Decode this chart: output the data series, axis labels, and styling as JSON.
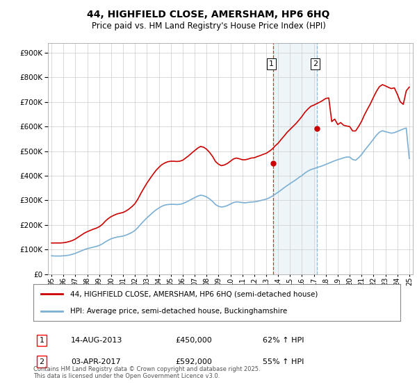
{
  "title": "44, HIGHFIELD CLOSE, AMERSHAM, HP6 6HQ",
  "subtitle": "Price paid vs. HM Land Registry's House Price Index (HPI)",
  "background_color": "#ffffff",
  "plot_bg_color": "#ffffff",
  "grid_color": "#cccccc",
  "hpi_line_color": "#7bafd4",
  "price_line_color": "#cc0000",
  "sale1_date": "14-AUG-2013",
  "sale1_price": "£450,000",
  "sale1_hpi": "62% ↑ HPI",
  "sale1_year": 2013.58,
  "sale1_value": 450000,
  "sale2_date": "03-APR-2017",
  "sale2_price": "£592,000",
  "sale2_hpi": "55% ↑ HPI",
  "sale2_year": 2017.25,
  "sale2_value": 592000,
  "footnote": "Contains HM Land Registry data © Crown copyright and database right 2025.\nThis data is licensed under the Open Government Licence v3.0.",
  "legend1": "44, HIGHFIELD CLOSE, AMERSHAM, HP6 6HQ (semi-detached house)",
  "legend2": "HPI: Average price, semi-detached house, Buckinghamshire",
  "ylim": [
    0,
    940000
  ],
  "yticks": [
    0,
    100000,
    200000,
    300000,
    400000,
    500000,
    600000,
    700000,
    800000,
    900000
  ],
  "hpi_years": [
    1995.0,
    1995.25,
    1995.5,
    1995.75,
    1996.0,
    1996.25,
    1996.5,
    1996.75,
    1997.0,
    1997.25,
    1997.5,
    1997.75,
    1998.0,
    1998.25,
    1998.5,
    1998.75,
    1999.0,
    1999.25,
    1999.5,
    1999.75,
    2000.0,
    2000.25,
    2000.5,
    2000.75,
    2001.0,
    2001.25,
    2001.5,
    2001.75,
    2002.0,
    2002.25,
    2002.5,
    2002.75,
    2003.0,
    2003.25,
    2003.5,
    2003.75,
    2004.0,
    2004.25,
    2004.5,
    2004.75,
    2005.0,
    2005.25,
    2005.5,
    2005.75,
    2006.0,
    2006.25,
    2006.5,
    2006.75,
    2007.0,
    2007.25,
    2007.5,
    2007.75,
    2008.0,
    2008.25,
    2008.5,
    2008.75,
    2009.0,
    2009.25,
    2009.5,
    2009.75,
    2010.0,
    2010.25,
    2010.5,
    2010.75,
    2011.0,
    2011.25,
    2011.5,
    2011.75,
    2012.0,
    2012.25,
    2012.5,
    2012.75,
    2013.0,
    2013.25,
    2013.5,
    2013.75,
    2014.0,
    2014.25,
    2014.5,
    2014.75,
    2015.0,
    2015.25,
    2015.5,
    2015.75,
    2016.0,
    2016.25,
    2016.5,
    2016.75,
    2017.0,
    2017.25,
    2017.5,
    2017.75,
    2018.0,
    2018.25,
    2018.5,
    2018.75,
    2019.0,
    2019.25,
    2019.5,
    2019.75,
    2020.0,
    2020.25,
    2020.5,
    2020.75,
    2021.0,
    2021.25,
    2021.5,
    2021.75,
    2022.0,
    2022.25,
    2022.5,
    2022.75,
    2023.0,
    2023.25,
    2023.5,
    2023.75,
    2024.0,
    2024.25,
    2024.5,
    2024.75,
    2025.0
  ],
  "hpi_values": [
    75000,
    74000,
    74000,
    74000,
    75000,
    76000,
    78000,
    81000,
    85000,
    90000,
    95000,
    100000,
    104000,
    107000,
    110000,
    113000,
    117000,
    123000,
    131000,
    138000,
    144000,
    148000,
    151000,
    153000,
    155000,
    159000,
    164000,
    170000,
    178000,
    190000,
    204000,
    217000,
    229000,
    240000,
    251000,
    261000,
    269000,
    276000,
    281000,
    283000,
    284000,
    284000,
    283000,
    284000,
    287000,
    292000,
    298000,
    305000,
    311000,
    317000,
    321000,
    319000,
    314000,
    306000,
    296000,
    283000,
    276000,
    273000,
    275000,
    279000,
    285000,
    291000,
    294000,
    293000,
    291000,
    290000,
    292000,
    293000,
    294000,
    296000,
    299000,
    302000,
    305000,
    310000,
    317000,
    325000,
    333000,
    342000,
    351000,
    360000,
    368000,
    376000,
    384000,
    393000,
    401000,
    411000,
    419000,
    425000,
    429000,
    433000,
    437000,
    441000,
    446000,
    451000,
    456000,
    461000,
    465000,
    469000,
    473000,
    476000,
    476000,
    466000,
    463000,
    473000,
    486000,
    503000,
    518000,
    533000,
    549000,
    565000,
    577000,
    583000,
    579000,
    576000,
    573000,
    575000,
    580000,
    585000,
    590000,
    594000,
    470000
  ],
  "price_years": [
    1995.0,
    1995.25,
    1995.5,
    1995.75,
    1996.0,
    1996.25,
    1996.5,
    1996.75,
    1997.0,
    1997.25,
    1997.5,
    1997.75,
    1998.0,
    1998.25,
    1998.5,
    1998.75,
    1999.0,
    1999.25,
    1999.5,
    1999.75,
    2000.0,
    2000.25,
    2000.5,
    2000.75,
    2001.0,
    2001.25,
    2001.5,
    2001.75,
    2002.0,
    2002.25,
    2002.5,
    2002.75,
    2003.0,
    2003.25,
    2003.5,
    2003.75,
    2004.0,
    2004.25,
    2004.5,
    2004.75,
    2005.0,
    2005.25,
    2005.5,
    2005.75,
    2006.0,
    2006.25,
    2006.5,
    2006.75,
    2007.0,
    2007.25,
    2007.5,
    2007.75,
    2008.0,
    2008.25,
    2008.5,
    2008.75,
    2009.0,
    2009.25,
    2009.5,
    2009.75,
    2010.0,
    2010.25,
    2010.5,
    2010.75,
    2011.0,
    2011.25,
    2011.5,
    2011.75,
    2012.0,
    2012.25,
    2012.5,
    2012.75,
    2013.0,
    2013.25,
    2013.5,
    2013.75,
    2014.0,
    2014.25,
    2014.5,
    2014.75,
    2015.0,
    2015.25,
    2015.5,
    2015.75,
    2016.0,
    2016.25,
    2016.5,
    2016.75,
    2017.0,
    2017.25,
    2017.5,
    2017.75,
    2018.0,
    2018.25,
    2018.5,
    2018.75,
    2019.0,
    2019.25,
    2019.5,
    2019.75,
    2020.0,
    2020.25,
    2020.5,
    2020.75,
    2021.0,
    2021.25,
    2021.5,
    2021.75,
    2022.0,
    2022.25,
    2022.5,
    2022.75,
    2023.0,
    2023.25,
    2023.5,
    2023.75,
    2024.0,
    2024.25,
    2024.5,
    2024.75,
    2025.0
  ],
  "price_values": [
    127000,
    127000,
    127000,
    127000,
    128000,
    130000,
    133000,
    137000,
    143000,
    151000,
    159000,
    167000,
    173000,
    178000,
    183000,
    187000,
    193000,
    202000,
    215000,
    226000,
    234000,
    240000,
    245000,
    248000,
    251000,
    257000,
    265000,
    275000,
    287000,
    306000,
    329000,
    350000,
    370000,
    388000,
    405000,
    421000,
    434000,
    445000,
    452000,
    457000,
    459000,
    459000,
    458000,
    459000,
    463000,
    472000,
    481000,
    492000,
    502000,
    512000,
    519000,
    516000,
    508000,
    495000,
    479000,
    458000,
    447000,
    441000,
    444000,
    450000,
    459000,
    468000,
    472000,
    469000,
    465000,
    465000,
    468000,
    472000,
    473000,
    478000,
    482000,
    487000,
    491000,
    499000,
    508000,
    521000,
    532000,
    547000,
    561000,
    576000,
    588000,
    600000,
    612000,
    626000,
    641000,
    658000,
    671000,
    682000,
    687000,
    693000,
    699000,
    706000,
    714000,
    716000,
    620000,
    630000,
    608000,
    616000,
    605000,
    602000,
    600000,
    582000,
    582000,
    600000,
    621000,
    648000,
    671000,
    693000,
    719000,
    743000,
    762000,
    770000,
    765000,
    759000,
    754000,
    757000,
    731000,
    700000,
    690000,
    745000,
    760000
  ]
}
